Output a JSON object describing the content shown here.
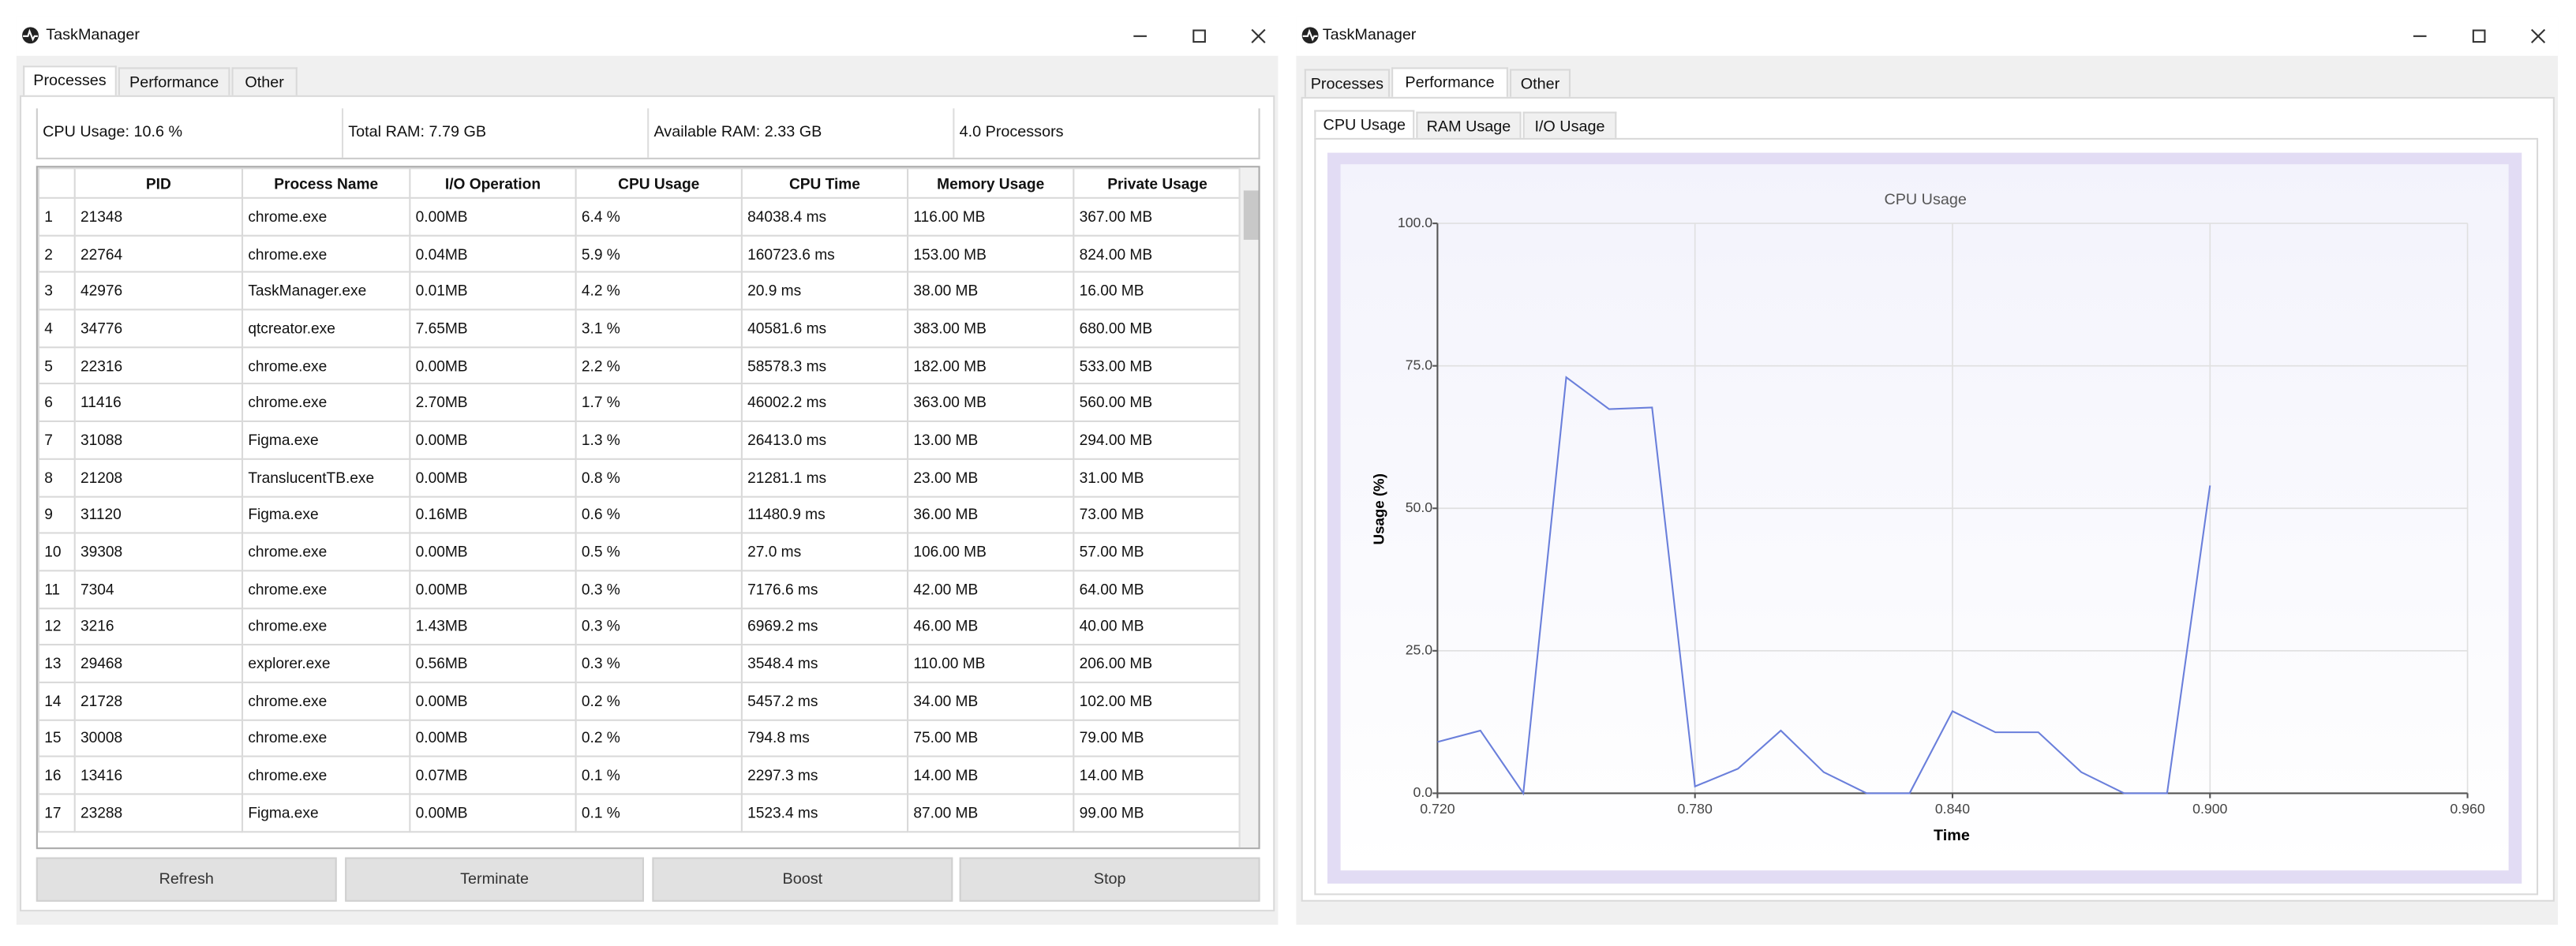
{
  "left_window": {
    "title": "TaskManager",
    "tabs": [
      "Processes",
      "Performance",
      "Other"
    ],
    "stats": [
      "CPU Usage: 10.6 %",
      "Total RAM: 7.79 GB",
      "Available RAM: 2.33 GB",
      "4.0 Processors"
    ],
    "table": {
      "columns": [
        "PID",
        "Process Name",
        "I/O Operation",
        "CPU Usage",
        "CPU Time",
        "Memory Usage",
        "Private Usage"
      ],
      "row_numbers": [
        1,
        2,
        3,
        4,
        5,
        6,
        7,
        8,
        9,
        10,
        11,
        12,
        13,
        14,
        15,
        16,
        17
      ],
      "rows": [
        [
          "21348",
          "chrome.exe",
          "0.00MB",
          "6.4 %",
          "84038.4 ms",
          "116.00 MB",
          "367.00 MB"
        ],
        [
          "22764",
          "chrome.exe",
          "0.04MB",
          "5.9 %",
          "160723.6 ms",
          "153.00 MB",
          "824.00 MB"
        ],
        [
          "42976",
          "TaskManager.exe",
          "0.01MB",
          "4.2 %",
          "20.9 ms",
          "38.00 MB",
          "16.00 MB"
        ],
        [
          "34776",
          "qtcreator.exe",
          "7.65MB",
          "3.1 %",
          "40581.6 ms",
          "383.00 MB",
          "680.00 MB"
        ],
        [
          "22316",
          "chrome.exe",
          "0.00MB",
          "2.2 %",
          "58578.3 ms",
          "182.00 MB",
          "533.00 MB"
        ],
        [
          "11416",
          "chrome.exe",
          "2.70MB",
          "1.7 %",
          "46002.2 ms",
          "363.00 MB",
          "560.00 MB"
        ],
        [
          "31088",
          "Figma.exe",
          "0.00MB",
          "1.3 %",
          "26413.0 ms",
          "13.00 MB",
          "294.00 MB"
        ],
        [
          "21208",
          "TranslucentTB.exe",
          "0.00MB",
          "0.8 %",
          "21281.1 ms",
          "23.00 MB",
          "31.00 MB"
        ],
        [
          "31120",
          "Figma.exe",
          "0.16MB",
          "0.6 %",
          "11480.9 ms",
          "36.00 MB",
          "73.00 MB"
        ],
        [
          "39308",
          "chrome.exe",
          "0.00MB",
          "0.5 %",
          "27.0 ms",
          "106.00 MB",
          "57.00 MB"
        ],
        [
          "7304",
          "chrome.exe",
          "0.00MB",
          "0.3 %",
          "7176.6 ms",
          "42.00 MB",
          "64.00 MB"
        ],
        [
          "3216",
          "chrome.exe",
          "1.43MB",
          "0.3 %",
          "6969.2 ms",
          "46.00 MB",
          "40.00 MB"
        ],
        [
          "29468",
          "explorer.exe",
          "0.56MB",
          "0.3 %",
          "3548.4 ms",
          "110.00 MB",
          "206.00 MB"
        ],
        [
          "21728",
          "chrome.exe",
          "0.00MB",
          "0.2 %",
          "5457.2 ms",
          "34.00 MB",
          "102.00 MB"
        ],
        [
          "30008",
          "chrome.exe",
          "0.00MB",
          "0.2 %",
          "794.8 ms",
          "75.00 MB",
          "79.00 MB"
        ],
        [
          "13416",
          "chrome.exe",
          "0.07MB",
          "0.1 %",
          "2297.3 ms",
          "14.00 MB",
          "14.00 MB"
        ],
        [
          "23288",
          "Figma.exe",
          "0.00MB",
          "0.1 %",
          "1523.4 ms",
          "87.00 MB",
          "99.00 MB"
        ]
      ]
    },
    "buttons": [
      "Refresh",
      "Terminate",
      "Boost",
      "Stop"
    ]
  },
  "right_window": {
    "title": "TaskManager",
    "tabs": [
      "Processes",
      "Performance",
      "Other"
    ],
    "subtabs": [
      "CPU Usage",
      "RAM Usage",
      "I/O Usage"
    ]
  },
  "chart_data": {
    "type": "line",
    "title": "CPU Usage",
    "x_label": "Time",
    "y_label": "Usage (%)",
    "x": [
      0.72,
      0.73,
      0.74,
      0.75,
      0.76,
      0.77,
      0.78,
      0.79,
      0.8,
      0.81,
      0.82,
      0.83,
      0.84,
      0.85,
      0.86,
      0.87,
      0.88,
      0.89,
      0.9
    ],
    "values": [
      9,
      11,
      0,
      73,
      67.4,
      67.7,
      1.2,
      4.3,
      11,
      3.7,
      0,
      0,
      14.4,
      10.7,
      10.7,
      3.7,
      0,
      0,
      54
    ],
    "color": "#6a7fdb",
    "xlim": [
      0.72,
      0.96
    ],
    "xticks": [
      {
        "value": 0.72,
        "label": "0.720"
      },
      {
        "value": 0.78,
        "label": "0.780"
      },
      {
        "value": 0.84,
        "label": "0.840"
      },
      {
        "value": 0.9,
        "label": "0.900"
      },
      {
        "value": 0.96,
        "label": "0.960"
      }
    ],
    "ylim": [
      0,
      100
    ],
    "yticks": [
      {
        "value": 0,
        "label": "0.0"
      },
      {
        "value": 25,
        "label": "25.0"
      },
      {
        "value": 50,
        "label": "50.0"
      },
      {
        "value": 75,
        "label": "75.0"
      },
      {
        "value": 100,
        "label": "100.0"
      }
    ],
    "grid": true
  }
}
